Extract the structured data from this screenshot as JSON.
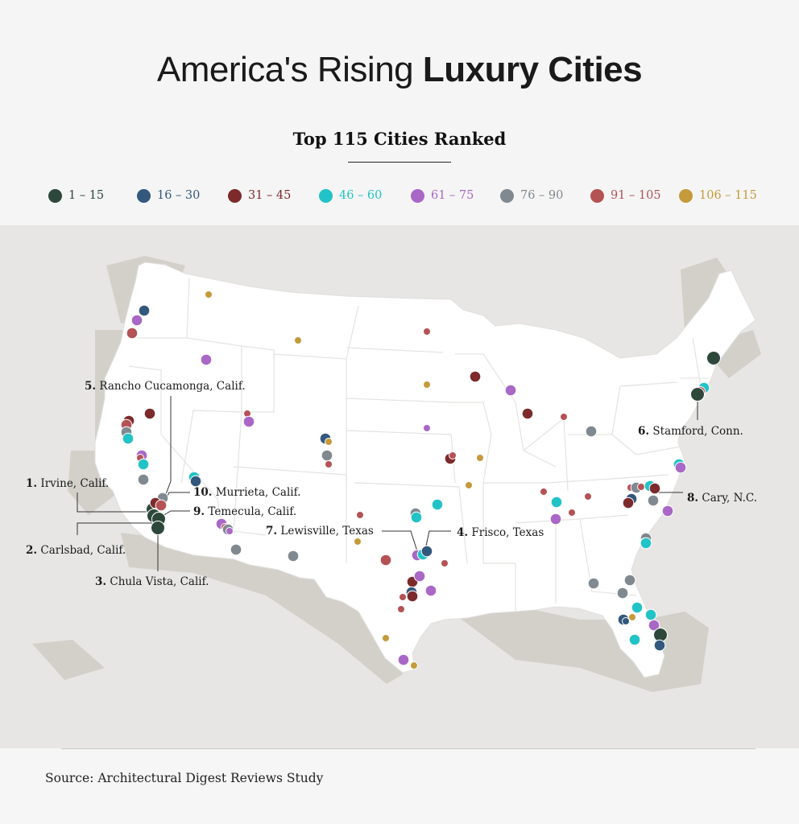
{
  "title_light": "America's Rising ",
  "title_bold": "Luxury Cities",
  "subtitle": "Top 115 Cities Ranked",
  "legend": [
    {
      "label": "1 – 15",
      "color": "#2e473b"
    },
    {
      "label": "16 – 30",
      "color": "#33587d"
    },
    {
      "label": "31 – 45",
      "color": "#7d2a2c"
    },
    {
      "label": "46 – 60",
      "color": "#22c3c7"
    },
    {
      "label": "61 – 75",
      "color": "#a967c6"
    },
    {
      "label": "76 – 90",
      "color": "#808890"
    },
    {
      "label": "91 – 105",
      "color": "#b45255"
    },
    {
      "label": "106 – 115",
      "color": "#c59a3a"
    }
  ],
  "top_cities": [
    {
      "rank": "1.",
      "name": "Irvine, Calif."
    },
    {
      "rank": "2.",
      "name": "Carlsbad, Calif."
    },
    {
      "rank": "3.",
      "name": "Chula Vista, Calif."
    },
    {
      "rank": "4.",
      "name": "Frisco, Texas"
    },
    {
      "rank": "5.",
      "name": "Rancho Cucamonga, Calif."
    },
    {
      "rank": "6.",
      "name": "Stamford, Conn."
    },
    {
      "rank": "7.",
      "name": "Lewisville, Texas"
    },
    {
      "rank": "8.",
      "name": "Cary, N.C."
    },
    {
      "rank": "9.",
      "name": "Temecula, Calif."
    },
    {
      "rank": "10.",
      "name": "Murrieta, Calif."
    }
  ],
  "source": "Source: Architectural Digest Reviews Study"
}
